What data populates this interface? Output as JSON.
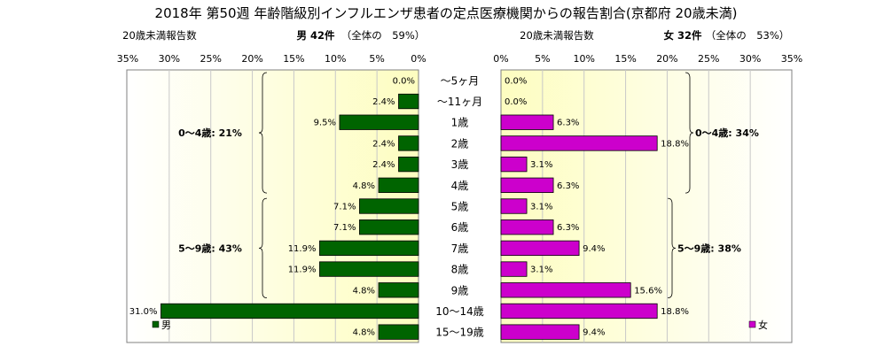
{
  "chart_data": {
    "type": "bar",
    "title": "2018年 第50週 年齢階級別インフルエンザ患者の定点医療機関からの報告割合(京都府 20歳未満)",
    "categories": [
      "～5ヶ月",
      "～11ヶ月",
      "1歳",
      "2歳",
      "3歳",
      "4歳",
      "5歳",
      "6歳",
      "7歳",
      "8歳",
      "9歳",
      "10～14歳",
      "15～19歳"
    ],
    "axis_ticks": [
      "35%",
      "30%",
      "25%",
      "20%",
      "15%",
      "10%",
      "5%",
      "0%"
    ],
    "axis_ticks_right": [
      "0%",
      "5%",
      "10%",
      "15%",
      "20%",
      "25%",
      "30%",
      "35%"
    ],
    "xlim": [
      0,
      35
    ],
    "grid": true,
    "series": [
      {
        "name": "男",
        "side": "left",
        "color": "#006400",
        "header_label": "20歳未満報告数",
        "header_count": "男 42件",
        "header_share": "（全体の　59%）",
        "values": [
          0.0,
          2.4,
          9.5,
          2.4,
          2.4,
          4.8,
          7.1,
          7.1,
          11.9,
          11.9,
          4.8,
          31.0,
          4.8
        ],
        "value_labels": [
          "0.0%",
          "2.4%",
          "9.5%",
          "2.4%",
          "2.4%",
          "4.8%",
          "7.1%",
          "7.1%",
          "11.9%",
          "11.9%",
          "4.8%",
          "31.0%",
          "4.8%"
        ],
        "groups": [
          {
            "label": "0～4歳: 21%",
            "from": 0,
            "to": 5
          },
          {
            "label": "5～9歳: 43%",
            "from": 6,
            "to": 10
          }
        ]
      },
      {
        "name": "女",
        "side": "right",
        "color": "#cc00cc",
        "header_label": "20歳未満報告数",
        "header_count": "女 32件",
        "header_share": "（全体の　53%）",
        "values": [
          0.0,
          0.0,
          6.3,
          18.8,
          3.1,
          6.3,
          3.1,
          6.3,
          9.4,
          3.1,
          15.6,
          18.8,
          9.4
        ],
        "value_labels": [
          "0.0%",
          "0.0%",
          "6.3%",
          "18.8%",
          "3.1%",
          "6.3%",
          "3.1%",
          "6.3%",
          "9.4%",
          "3.1%",
          "15.6%",
          "18.8%",
          "9.4%"
        ],
        "groups": [
          {
            "label": "0～4歳: 34%",
            "from": 0,
            "to": 5
          },
          {
            "label": "5～9歳: 38%",
            "from": 6,
            "to": 10
          }
        ]
      }
    ]
  }
}
